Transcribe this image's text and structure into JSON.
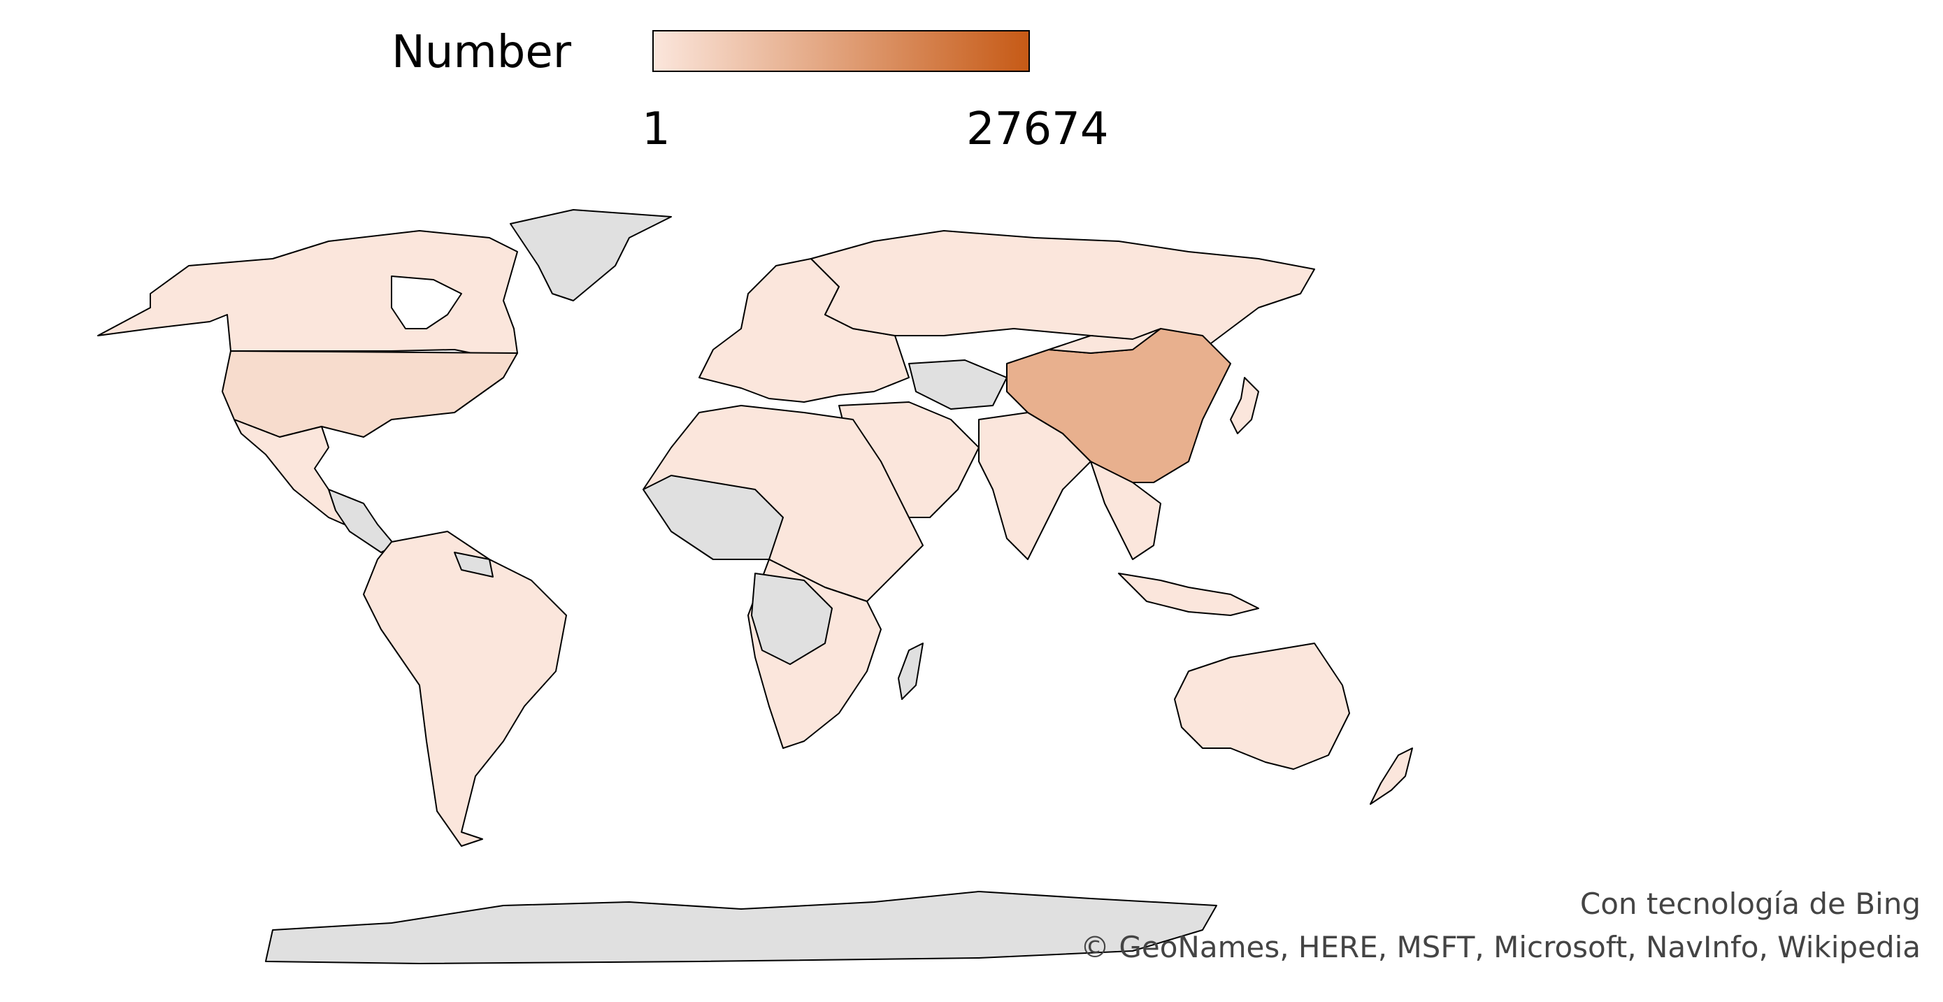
{
  "legend": {
    "title": "Number",
    "min_label": "1",
    "max_label": "27674",
    "color_min": "#fbe6dc",
    "color_max": "#c65a16"
  },
  "colors": {
    "no_data": "#e0e0e0",
    "border": "#000000"
  },
  "regions": [
    {
      "name": "China",
      "value": "high"
    },
    {
      "name": "Greenland",
      "value": "no data"
    },
    {
      "name": "Antarctica",
      "value": "no data"
    }
  ],
  "attribution": {
    "line1": "Con tecnología de Bing",
    "line2": "© GeoNames, HERE, MSFT, Microsoft, NavInfo, Wikipedia"
  }
}
